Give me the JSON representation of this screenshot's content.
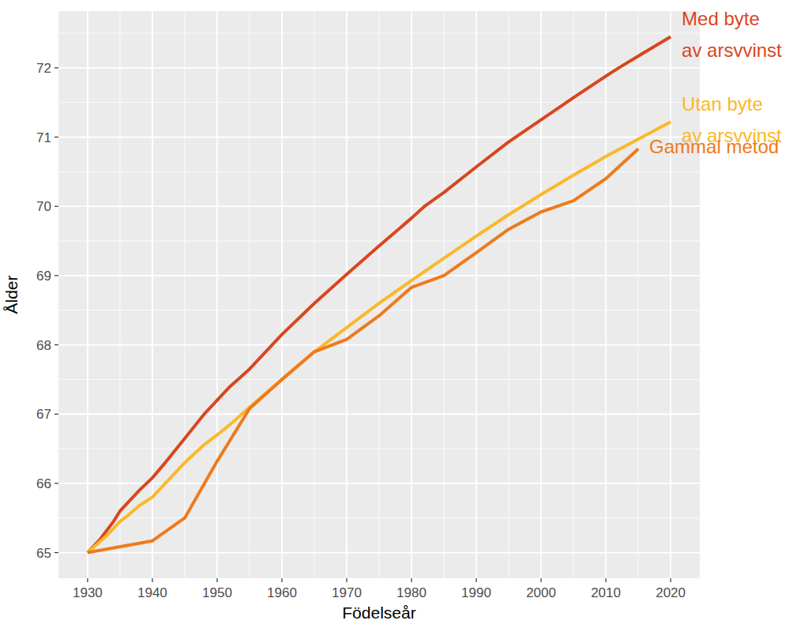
{
  "chart_data": {
    "type": "line",
    "x_label": "Födelseår",
    "y_label": "Ålder",
    "xlim": [
      1925.5,
      2024.5
    ],
    "xticks": [
      1930,
      1940,
      1950,
      1960,
      1970,
      1980,
      1990,
      2000,
      2010,
      2020
    ],
    "ylim": [
      64.63,
      72.82
    ],
    "yticks": [
      65,
      66,
      67,
      68,
      69,
      70,
      71,
      72
    ],
    "grid": true,
    "series": [
      {
        "name": "Med byte\nav arsvvinst",
        "color": "#D9461E",
        "x": [
          1930,
          1932,
          1934,
          1935,
          1936,
          1938,
          1940,
          1942,
          1945,
          1948,
          1950,
          1952,
          1955,
          1958,
          1960,
          1965,
          1970,
          1975,
          1980,
          1982,
          1985,
          1990,
          1995,
          2000,
          2005,
          2010,
          2012,
          2015,
          2020
        ],
        "values": [
          65.0,
          65.2,
          65.45,
          65.6,
          65.7,
          65.9,
          66.08,
          66.3,
          66.65,
          67.0,
          67.2,
          67.4,
          67.65,
          67.95,
          68.15,
          68.6,
          69.02,
          69.43,
          69.83,
          70.0,
          70.2,
          70.57,
          70.93,
          71.25,
          71.57,
          71.88,
          72.0,
          72.17,
          72.45
        ]
      },
      {
        "name": "Utan byte\nav arsvvinst",
        "color": "#FBB829",
        "x": [
          1930,
          1933,
          1935,
          1936,
          1938,
          1940,
          1942,
          1945,
          1948,
          1950,
          1952,
          1955,
          1960,
          1965,
          1970,
          1975,
          1980,
          1985,
          1990,
          1995,
          2000,
          2005,
          2010,
          2015,
          2020
        ],
        "values": [
          65.0,
          65.25,
          65.45,
          65.52,
          65.68,
          65.8,
          66.0,
          66.3,
          66.56,
          66.7,
          66.85,
          67.1,
          67.5,
          67.9,
          68.25,
          68.6,
          68.93,
          69.25,
          69.57,
          69.88,
          70.17,
          70.45,
          70.72,
          70.97,
          71.22
        ]
      },
      {
        "name": "Gammal metod",
        "color": "#EE7A1C",
        "x": [
          1930,
          1940,
          1945,
          1950,
          1955,
          1960,
          1965,
          1970,
          1975,
          1980,
          1985,
          1990,
          1995,
          2000,
          2005,
          2010,
          2015
        ],
        "values": [
          65.0,
          65.17,
          65.5,
          66.32,
          67.08,
          67.5,
          67.9,
          68.08,
          68.42,
          68.83,
          69.0,
          69.33,
          69.67,
          69.92,
          70.08,
          70.4,
          70.83
        ]
      }
    ]
  }
}
